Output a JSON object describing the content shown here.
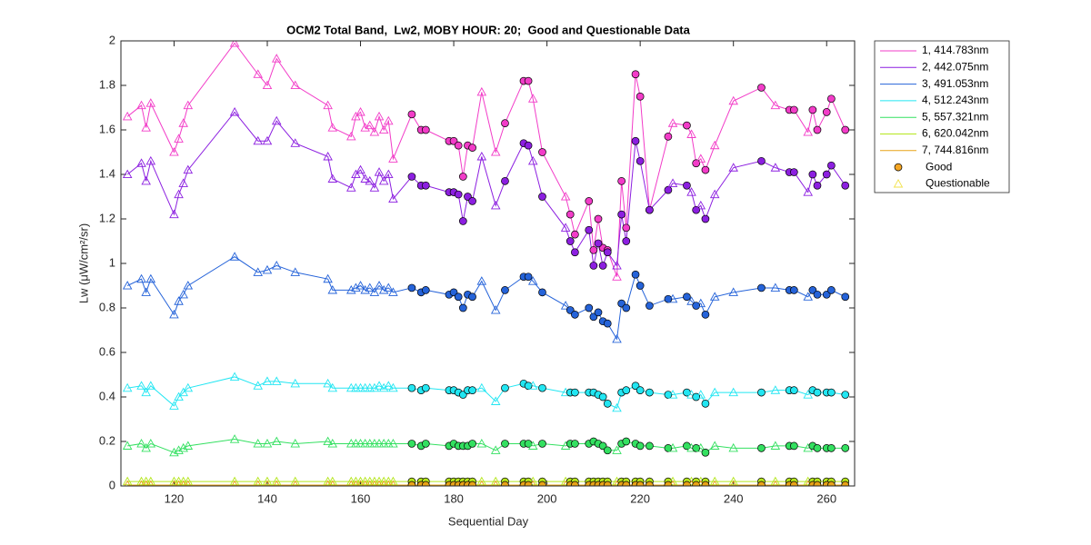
{
  "chart_data": {
    "type": "line",
    "title": "OCM2 Total Band,  Lw2, MOBY HOUR: 20;  Good and Questionable Data",
    "x_label": "Sequential Day",
    "y_label": "Lw (μW/cm²/sr)",
    "xlim": [
      108.6,
      266
    ],
    "ylim": [
      0,
      2
    ],
    "xticks": [
      120,
      140,
      160,
      180,
      200,
      220,
      240,
      260
    ],
    "yticks": [
      0,
      0.2,
      0.4,
      0.6,
      0.8,
      1,
      1.2,
      1.4,
      1.6,
      1.8,
      2
    ],
    "grid": false,
    "legend": "outside-right",
    "x": [
      110,
      113,
      114,
      115,
      120,
      121,
      122,
      123,
      133,
      138,
      140,
      142,
      146,
      153,
      154,
      158,
      159,
      160,
      161,
      162,
      163,
      164,
      165,
      166,
      167,
      171,
      173,
      174,
      179,
      180,
      181,
      182,
      183,
      184,
      186,
      189,
      191,
      195,
      196,
      197,
      199,
      204,
      205,
      206,
      209,
      210,
      211,
      212,
      213,
      215,
      216,
      217,
      219,
      220,
      222,
      226,
      227,
      230,
      231,
      232,
      233,
      234,
      236,
      240,
      246,
      249,
      252,
      253,
      256,
      257,
      258,
      260,
      261,
      264
    ],
    "good": [
      false,
      false,
      false,
      false,
      false,
      false,
      false,
      false,
      false,
      false,
      false,
      false,
      false,
      false,
      false,
      false,
      false,
      false,
      false,
      false,
      false,
      false,
      false,
      false,
      false,
      true,
      true,
      true,
      true,
      true,
      true,
      true,
      true,
      true,
      false,
      false,
      true,
      true,
      true,
      false,
      true,
      false,
      true,
      true,
      true,
      true,
      true,
      true,
      true,
      false,
      true,
      true,
      true,
      true,
      true,
      true,
      false,
      true,
      false,
      true,
      false,
      true,
      false,
      false,
      true,
      false,
      true,
      true,
      false,
      true,
      true,
      true,
      true,
      true
    ],
    "marker_legend": [
      {
        "name": "Good",
        "marker": "circle",
        "color": "#f5a623"
      },
      {
        "name": "Questionable",
        "marker": "triangle",
        "color": "#f2e24a"
      }
    ],
    "series": [
      {
        "name": "1, 414.783nm",
        "color": "#f23cc8",
        "values": [
          1.66,
          1.71,
          1.61,
          1.72,
          1.5,
          1.56,
          1.63,
          1.71,
          1.99,
          1.85,
          1.8,
          1.92,
          1.8,
          1.71,
          1.61,
          1.57,
          1.66,
          1.68,
          1.61,
          1.62,
          1.59,
          1.66,
          1.6,
          1.64,
          1.47,
          1.67,
          1.6,
          1.6,
          1.55,
          1.55,
          1.53,
          1.39,
          1.53,
          1.52,
          1.77,
          1.5,
          1.63,
          1.82,
          1.82,
          1.74,
          1.5,
          1.3,
          1.22,
          1.13,
          1.28,
          1.06,
          1.2,
          1.07,
          1.06,
          0.94,
          1.37,
          1.16,
          1.85,
          1.75,
          1.24,
          1.57,
          1.63,
          1.62,
          1.58,
          1.45,
          1.47,
          1.42,
          1.53,
          1.73,
          1.79,
          1.71,
          1.69,
          1.69,
          1.59,
          1.69,
          1.6,
          1.68,
          1.74,
          1.6
        ]
      },
      {
        "name": "2, 442.075nm",
        "color": "#8c1fe0",
        "values": [
          1.4,
          1.45,
          1.37,
          1.46,
          1.22,
          1.31,
          1.36,
          1.42,
          1.68,
          1.55,
          1.55,
          1.64,
          1.54,
          1.48,
          1.38,
          1.34,
          1.4,
          1.42,
          1.38,
          1.37,
          1.34,
          1.41,
          1.37,
          1.4,
          1.29,
          1.39,
          1.35,
          1.35,
          1.32,
          1.32,
          1.31,
          1.19,
          1.3,
          1.28,
          1.48,
          1.26,
          1.37,
          1.54,
          1.53,
          1.46,
          1.3,
          1.16,
          1.1,
          1.05,
          1.15,
          0.99,
          1.09,
          0.99,
          1.05,
          0.99,
          1.22,
          1.1,
          1.55,
          1.46,
          1.24,
          1.33,
          1.36,
          1.35,
          1.32,
          1.24,
          1.26,
          1.2,
          1.31,
          1.43,
          1.46,
          1.43,
          1.41,
          1.41,
          1.32,
          1.4,
          1.35,
          1.4,
          1.44,
          1.35
        ]
      },
      {
        "name": "3, 491.053nm",
        "color": "#2563d9",
        "values": [
          0.9,
          0.93,
          0.87,
          0.93,
          0.77,
          0.83,
          0.86,
          0.9,
          1.03,
          0.96,
          0.97,
          0.99,
          0.96,
          0.93,
          0.88,
          0.88,
          0.89,
          0.9,
          0.88,
          0.89,
          0.87,
          0.9,
          0.88,
          0.89,
          0.87,
          0.89,
          0.87,
          0.88,
          0.86,
          0.87,
          0.85,
          0.8,
          0.86,
          0.85,
          0.92,
          0.79,
          0.88,
          0.94,
          0.94,
          0.92,
          0.87,
          0.81,
          0.79,
          0.77,
          0.8,
          0.76,
          0.78,
          0.74,
          0.73,
          0.66,
          0.82,
          0.8,
          0.95,
          0.9,
          0.81,
          0.84,
          0.84,
          0.85,
          0.83,
          0.81,
          0.82,
          0.77,
          0.85,
          0.87,
          0.89,
          0.89,
          0.88,
          0.88,
          0.85,
          0.88,
          0.86,
          0.86,
          0.88,
          0.85
        ]
      },
      {
        "name": "4, 512.243nm",
        "color": "#22e6f2",
        "values": [
          0.44,
          0.45,
          0.42,
          0.45,
          0.36,
          0.4,
          0.42,
          0.44,
          0.49,
          0.45,
          0.47,
          0.47,
          0.46,
          0.46,
          0.44,
          0.44,
          0.44,
          0.44,
          0.44,
          0.44,
          0.44,
          0.45,
          0.44,
          0.45,
          0.44,
          0.44,
          0.43,
          0.44,
          0.43,
          0.43,
          0.42,
          0.41,
          0.43,
          0.43,
          0.44,
          0.38,
          0.44,
          0.46,
          0.45,
          0.45,
          0.44,
          0.42,
          0.42,
          0.42,
          0.42,
          0.42,
          0.41,
          0.4,
          0.37,
          0.35,
          0.42,
          0.43,
          0.45,
          0.43,
          0.42,
          0.41,
          0.41,
          0.42,
          0.41,
          0.4,
          0.41,
          0.37,
          0.42,
          0.42,
          0.42,
          0.43,
          0.43,
          0.43,
          0.41,
          0.43,
          0.42,
          0.42,
          0.42,
          0.41
        ]
      },
      {
        "name": "5, 557.321nm",
        "color": "#33e060",
        "values": [
          0.18,
          0.19,
          0.17,
          0.19,
          0.15,
          0.16,
          0.17,
          0.18,
          0.21,
          0.19,
          0.19,
          0.2,
          0.19,
          0.2,
          0.19,
          0.19,
          0.19,
          0.19,
          0.19,
          0.19,
          0.19,
          0.19,
          0.19,
          0.19,
          0.19,
          0.19,
          0.18,
          0.19,
          0.18,
          0.19,
          0.18,
          0.18,
          0.18,
          0.19,
          0.19,
          0.16,
          0.19,
          0.19,
          0.19,
          0.18,
          0.19,
          0.18,
          0.19,
          0.19,
          0.19,
          0.2,
          0.19,
          0.18,
          0.16,
          0.16,
          0.19,
          0.2,
          0.19,
          0.18,
          0.18,
          0.17,
          0.17,
          0.18,
          0.17,
          0.17,
          0.17,
          0.15,
          0.18,
          0.17,
          0.17,
          0.18,
          0.18,
          0.18,
          0.17,
          0.18,
          0.17,
          0.17,
          0.17,
          0.17
        ]
      },
      {
        "name": "6, 620.042nm",
        "color": "#b5e61d",
        "values": [
          0.02,
          0.02,
          0.02,
          0.02,
          0.02,
          0.02,
          0.02,
          0.02,
          0.02,
          0.02,
          0.02,
          0.02,
          0.02,
          0.02,
          0.02,
          0.02,
          0.02,
          0.02,
          0.02,
          0.02,
          0.02,
          0.02,
          0.02,
          0.02,
          0.02,
          0.02,
          0.02,
          0.02,
          0.02,
          0.02,
          0.02,
          0.02,
          0.02,
          0.02,
          0.02,
          0.02,
          0.02,
          0.02,
          0.02,
          0.02,
          0.02,
          0.02,
          0.02,
          0.02,
          0.02,
          0.02,
          0.02,
          0.02,
          0.02,
          0.02,
          0.02,
          0.02,
          0.02,
          0.02,
          0.02,
          0.02,
          0.02,
          0.02,
          0.02,
          0.02,
          0.02,
          0.02,
          0.02,
          0.02,
          0.02,
          0.02,
          0.02,
          0.02,
          0.02,
          0.02,
          0.02,
          0.02,
          0.02,
          0.02
        ]
      },
      {
        "name": "7, 744.816nm",
        "color": "#e8a317",
        "values": [
          0.004,
          0.004,
          0.004,
          0.004,
          0.004,
          0.004,
          0.004,
          0.004,
          0.004,
          0.004,
          0.004,
          0.004,
          0.004,
          0.004,
          0.004,
          0.004,
          0.004,
          0.004,
          0.004,
          0.004,
          0.004,
          0.004,
          0.004,
          0.004,
          0.004,
          0.004,
          0.004,
          0.004,
          0.004,
          0.004,
          0.004,
          0.004,
          0.004,
          0.004,
          0.004,
          0.004,
          0.004,
          0.004,
          0.004,
          0.004,
          0.004,
          0.004,
          0.004,
          0.004,
          0.004,
          0.004,
          0.004,
          0.004,
          0.004,
          0.004,
          0.004,
          0.004,
          0.004,
          0.004,
          0.004,
          0.004,
          0.004,
          0.004,
          0.004,
          0.004,
          0.004,
          0.004,
          0.004,
          0.004,
          0.004,
          0.004,
          0.004,
          0.004,
          0.004,
          0.004,
          0.004,
          0.004,
          0.004,
          0.004
        ]
      }
    ]
  }
}
